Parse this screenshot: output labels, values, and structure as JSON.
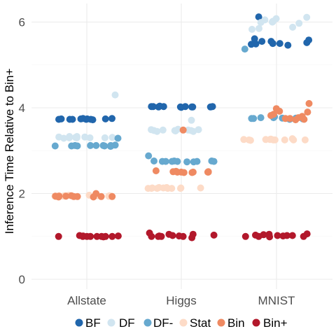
{
  "chart_data": {
    "type": "scatter",
    "title": "",
    "xlabel": "",
    "ylabel": "Inference Time Relative to Bin+",
    "categories": [
      "Allstate",
      "Higgs",
      "MNIST"
    ],
    "ylim": [
      -0.2,
      6.45
    ],
    "yticks": [
      0,
      2,
      4,
      6
    ],
    "grid": true,
    "legend_position": "bottom",
    "series": [
      {
        "name": "BF",
        "color": "#2166ac",
        "values": [
          [
            3.73,
            3.73,
            3.74,
            3.73,
            3.75,
            3.74,
            3.73,
            3.75,
            3.72,
            3.74,
            3.73,
            3.74
          ],
          [
            4.02,
            4.03,
            4.01,
            4.03,
            4.02,
            4.02,
            4.03,
            4.02,
            4.04,
            4.03,
            4.02,
            4.03
          ],
          [
            5.48,
            5.5,
            5.52,
            5.49,
            5.55,
            5.5,
            5.46,
            5.55,
            5.61,
            5.58,
            5.5,
            6.12
          ]
        ]
      },
      {
        "name": "DF",
        "color": "#d1e5f0",
        "values": [
          [
            3.3,
            3.31,
            3.29,
            3.3,
            3.33,
            3.3,
            3.32,
            4.3,
            3.33,
            3.31,
            3.32,
            3.3
          ],
          [
            3.48,
            3.47,
            3.49,
            3.71,
            3.45,
            3.48,
            3.5,
            3.47,
            3.49,
            3.46,
            3.45,
            3.47
          ],
          [
            6.11,
            6.05,
            6.0,
            6.08,
            6.01,
            5.97,
            6.02,
            6.0,
            5.99,
            5.85,
            5.88,
            5.83
          ]
        ]
      },
      {
        "name": "DF-",
        "color": "#67a9cf",
        "values": [
          [
            3.11,
            3.11,
            3.1,
            3.29,
            3.13,
            3.12,
            3.12,
            3.12,
            3.12,
            3.11,
            3.12,
            3.11
          ],
          [
            2.75,
            2.76,
            2.74,
            2.75,
            2.75,
            2.76,
            2.88,
            2.75,
            2.74,
            2.75,
            2.76,
            2.75
          ],
          [
            3.77,
            3.78,
            3.76,
            3.79,
            3.75,
            3.76,
            3.74,
            3.77,
            5.37,
            3.75,
            3.74,
            3.73
          ]
        ]
      },
      {
        "name": "Stat",
        "color": "#fddbc7",
        "values": [
          [
            1.95,
            1.94,
            1.96,
            1.94,
            1.95,
            1.93,
            1.95,
            1.94,
            1.96,
            1.94,
            1.95,
            1.94
          ],
          [
            2.13,
            2.12,
            2.14,
            2.12,
            2.13,
            2.12,
            2.13,
            2.12,
            2.13,
            2.12,
            2.14,
            2.12
          ],
          [
            3.25,
            3.25,
            3.26,
            3.24,
            3.25,
            3.27,
            3.26,
            3.25,
            3.25,
            3.28,
            3.26,
            3.25
          ]
        ]
      },
      {
        "name": "Bin",
        "color": "#ef8a62",
        "values": [
          [
            1.93,
            2.0,
            1.95,
            1.93,
            1.92,
            1.93,
            1.94,
            1.93,
            1.94,
            1.93,
            1.94,
            1.92
          ],
          [
            2.5,
            2.51,
            2.49,
            2.5,
            3.48,
            2.52,
            2.53,
            2.5,
            2.49,
            2.5,
            2.51,
            2.5
          ],
          [
            3.85,
            3.9,
            3.8,
            3.82,
            3.98,
            3.75,
            3.72,
            3.73,
            3.92,
            4.1,
            3.75,
            3.77
          ]
        ]
      },
      {
        "name": "Bin+",
        "color": "#b2182b",
        "values": [
          [
            1.0,
            1.0,
            1.01,
            1.0,
            1.0,
            1.02,
            0.99,
            1.0,
            1.0,
            1.01,
            1.0,
            1.0
          ],
          [
            1.0,
            1.02,
            1.01,
            1.03,
            0.97,
            1.0,
            1.05,
            1.01,
            1.0,
            1.0,
            1.05,
            1.08
          ],
          [
            1.06,
            1.02,
            1.0,
            1.05,
            1.03,
            1.02,
            1.0,
            1.02,
            1.04,
            1.0,
            1.01,
            0.99
          ]
        ]
      }
    ]
  }
}
